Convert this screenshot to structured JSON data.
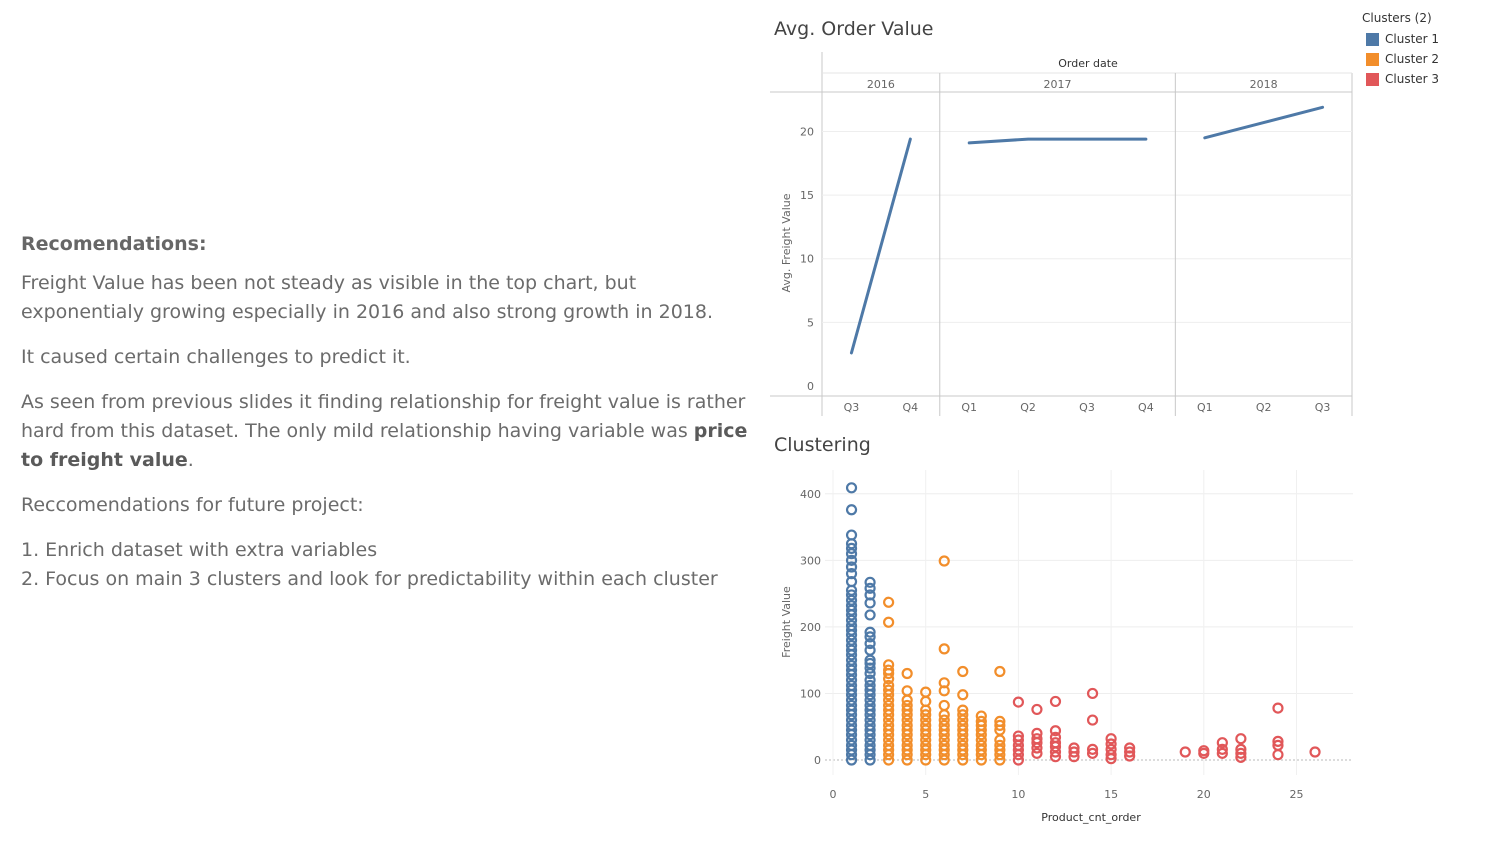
{
  "left_panel": {
    "heading": "Recomendations:",
    "p1": "Freight Value has been not steady as visible in the top chart, but exponentialy growing especially in 2016 and also strong growth in 2018.",
    "p2": "It caused certain challenges to predict it.",
    "p3_pre": "As seen from previous slides it finding relationship for freight value is rather hard from this dataset. The only mild relationship having variable was ",
    "p3_bold": "price to freight value",
    "p3_post": ".",
    "p4": "Reccomendations for future project:",
    "list": [
      "1. Enrich dataset with extra variables",
      "2. Focus on main 3 clusters and look for predictability  within each cluster"
    ]
  },
  "legend": {
    "title": "Clusters (2)",
    "items": [
      {
        "label": "Cluster 1",
        "color": "#4e79a7"
      },
      {
        "label": "Cluster 2",
        "color": "#f28e2b"
      },
      {
        "label": "Cluster 3",
        "color": "#e15759"
      }
    ]
  },
  "chart_data": [
    {
      "type": "line",
      "title": "Avg. Order Value",
      "header": "Order date",
      "ylabel": "Avg. Freight Value",
      "ylim": [
        0,
        22
      ],
      "yticks": [
        0,
        5,
        10,
        15,
        20
      ],
      "color": "#4e79a7",
      "panels": [
        {
          "year": "2016",
          "quarters": [
            "Q3",
            "Q4"
          ],
          "values": [
            2.6,
            19.4
          ]
        },
        {
          "year": "2017",
          "quarters": [
            "Q1",
            "Q2",
            "Q3",
            "Q4"
          ],
          "values": [
            19.1,
            19.4,
            19.4,
            19.4
          ]
        },
        {
          "year": "2018",
          "quarters": [
            "Q1",
            "Q2",
            "Q3"
          ],
          "values": [
            19.5,
            20.7,
            21.9
          ]
        }
      ]
    },
    {
      "type": "scatter",
      "title": "Clustering",
      "xlabel": "Product_cnt_order",
      "ylabel": "Freight Value",
      "xlim": [
        0,
        28
      ],
      "ylim": [
        0,
        420
      ],
      "xticks": [
        0,
        5,
        10,
        15,
        20,
        25
      ],
      "yticks": [
        0,
        100,
        200,
        300,
        400
      ],
      "series": [
        {
          "name": "Cluster 1",
          "color": "#4e79a7",
          "points": [
            [
              1,
              0
            ],
            [
              1,
              8
            ],
            [
              1,
              15
            ],
            [
              1,
              22
            ],
            [
              1,
              30
            ],
            [
              1,
              38
            ],
            [
              1,
              45
            ],
            [
              1,
              52
            ],
            [
              1,
              60
            ],
            [
              1,
              68
            ],
            [
              1,
              75
            ],
            [
              1,
              82
            ],
            [
              1,
              90
            ],
            [
              1,
              98
            ],
            [
              1,
              105
            ],
            [
              1,
              112
            ],
            [
              1,
              120
            ],
            [
              1,
              128
            ],
            [
              1,
              135
            ],
            [
              1,
              142
            ],
            [
              1,
              150
            ],
            [
              1,
              158
            ],
            [
              1,
              165
            ],
            [
              1,
              172
            ],
            [
              1,
              180
            ],
            [
              1,
              188
            ],
            [
              1,
              195
            ],
            [
              1,
              202
            ],
            [
              1,
              210
            ],
            [
              1,
              218
            ],
            [
              1,
              225
            ],
            [
              1,
              232
            ],
            [
              1,
              240
            ],
            [
              1,
              248
            ],
            [
              1,
              255
            ],
            [
              1,
              268
            ],
            [
              1,
              280
            ],
            [
              1,
              290
            ],
            [
              1,
              300
            ],
            [
              1,
              310
            ],
            [
              1,
              318
            ],
            [
              1,
              325
            ],
            [
              1,
              338
            ],
            [
              1,
              376
            ],
            [
              1,
              409
            ],
            [
              2,
              0
            ],
            [
              2,
              8
            ],
            [
              2,
              15
            ],
            [
              2,
              22
            ],
            [
              2,
              30
            ],
            [
              2,
              38
            ],
            [
              2,
              45
            ],
            [
              2,
              52
            ],
            [
              2,
              60
            ],
            [
              2,
              68
            ],
            [
              2,
              75
            ],
            [
              2,
              82
            ],
            [
              2,
              90
            ],
            [
              2,
              98
            ],
            [
              2,
              105
            ],
            [
              2,
              112
            ],
            [
              2,
              120
            ],
            [
              2,
              130
            ],
            [
              2,
              138
            ],
            [
              2,
              145
            ],
            [
              2,
              150
            ],
            [
              2,
              165
            ],
            [
              2,
              175
            ],
            [
              2,
              185
            ],
            [
              2,
              192
            ],
            [
              2,
              218
            ],
            [
              2,
              236
            ],
            [
              2,
              248
            ],
            [
              2,
              258
            ],
            [
              2,
              267
            ]
          ]
        },
        {
          "name": "Cluster 2",
          "color": "#f28e2b",
          "points": [
            [
              3,
              0
            ],
            [
              3,
              8
            ],
            [
              3,
              15
            ],
            [
              3,
              22
            ],
            [
              3,
              30
            ],
            [
              3,
              38
            ],
            [
              3,
              45
            ],
            [
              3,
              52
            ],
            [
              3,
              60
            ],
            [
              3,
              68
            ],
            [
              3,
              75
            ],
            [
              3,
              82
            ],
            [
              3,
              90
            ],
            [
              3,
              98
            ],
            [
              3,
              105
            ],
            [
              3,
              112
            ],
            [
              3,
              122
            ],
            [
              3,
              130
            ],
            [
              3,
              135
            ],
            [
              3,
              143
            ],
            [
              3,
              207
            ],
            [
              3,
              237
            ],
            [
              4,
              0
            ],
            [
              4,
              8
            ],
            [
              4,
              15
            ],
            [
              4,
              22
            ],
            [
              4,
              30
            ],
            [
              4,
              38
            ],
            [
              4,
              45
            ],
            [
              4,
              52
            ],
            [
              4,
              60
            ],
            [
              4,
              68
            ],
            [
              4,
              75
            ],
            [
              4,
              82
            ],
            [
              4,
              90
            ],
            [
              4,
              104
            ],
            [
              4,
              130
            ],
            [
              5,
              0
            ],
            [
              5,
              8
            ],
            [
              5,
              15
            ],
            [
              5,
              22
            ],
            [
              5,
              30
            ],
            [
              5,
              38
            ],
            [
              5,
              45
            ],
            [
              5,
              52
            ],
            [
              5,
              60
            ],
            [
              5,
              68
            ],
            [
              5,
              75
            ],
            [
              5,
              88
            ],
            [
              5,
              102
            ],
            [
              6,
              0
            ],
            [
              6,
              8
            ],
            [
              6,
              15
            ],
            [
              6,
              22
            ],
            [
              6,
              30
            ],
            [
              6,
              38
            ],
            [
              6,
              45
            ],
            [
              6,
              52
            ],
            [
              6,
              60
            ],
            [
              6,
              68
            ],
            [
              6,
              82
            ],
            [
              6,
              104
            ],
            [
              6,
              116
            ],
            [
              6,
              167
            ],
            [
              6,
              299
            ],
            [
              7,
              0
            ],
            [
              7,
              8
            ],
            [
              7,
              15
            ],
            [
              7,
              22
            ],
            [
              7,
              30
            ],
            [
              7,
              38
            ],
            [
              7,
              45
            ],
            [
              7,
              52
            ],
            [
              7,
              60
            ],
            [
              7,
              68
            ],
            [
              7,
              75
            ],
            [
              7,
              98
            ],
            [
              7,
              133
            ],
            [
              8,
              0
            ],
            [
              8,
              8
            ],
            [
              8,
              15
            ],
            [
              8,
              22
            ],
            [
              8,
              30
            ],
            [
              8,
              38
            ],
            [
              8,
              45
            ],
            [
              8,
              52
            ],
            [
              8,
              58
            ],
            [
              8,
              66
            ],
            [
              9,
              0
            ],
            [
              9,
              8
            ],
            [
              9,
              15
            ],
            [
              9,
              22
            ],
            [
              9,
              30
            ],
            [
              9,
              45
            ],
            [
              9,
              52
            ],
            [
              9,
              58
            ],
            [
              9,
              133
            ]
          ]
        },
        {
          "name": "Cluster 3",
          "color": "#e15759",
          "points": [
            [
              10,
              0
            ],
            [
              10,
              8
            ],
            [
              10,
              15
            ],
            [
              10,
              22
            ],
            [
              10,
              30
            ],
            [
              10,
              36
            ],
            [
              10,
              87
            ],
            [
              11,
              10
            ],
            [
              11,
              18
            ],
            [
              11,
              26
            ],
            [
              11,
              32
            ],
            [
              11,
              40
            ],
            [
              11,
              76
            ],
            [
              12,
              5
            ],
            [
              12,
              12
            ],
            [
              12,
              20
            ],
            [
              12,
              26
            ],
            [
              12,
              34
            ],
            [
              12,
              44
            ],
            [
              12,
              88
            ],
            [
              13,
              5
            ],
            [
              13,
              12
            ],
            [
              13,
              18
            ],
            [
              14,
              10
            ],
            [
              14,
              16
            ],
            [
              14,
              60
            ],
            [
              14,
              100
            ],
            [
              15,
              2
            ],
            [
              15,
              8
            ],
            [
              15,
              16
            ],
            [
              15,
              24
            ],
            [
              15,
              32
            ],
            [
              16,
              6
            ],
            [
              16,
              12
            ],
            [
              16,
              18
            ],
            [
              19,
              12
            ],
            [
              20,
              10
            ],
            [
              20,
              14
            ],
            [
              21,
              10
            ],
            [
              21,
              16
            ],
            [
              21,
              26
            ],
            [
              22,
              4
            ],
            [
              22,
              10
            ],
            [
              22,
              16
            ],
            [
              22,
              32
            ],
            [
              24,
              8
            ],
            [
              24,
              22
            ],
            [
              24,
              28
            ],
            [
              24,
              78
            ],
            [
              26,
              12
            ]
          ]
        }
      ]
    }
  ]
}
